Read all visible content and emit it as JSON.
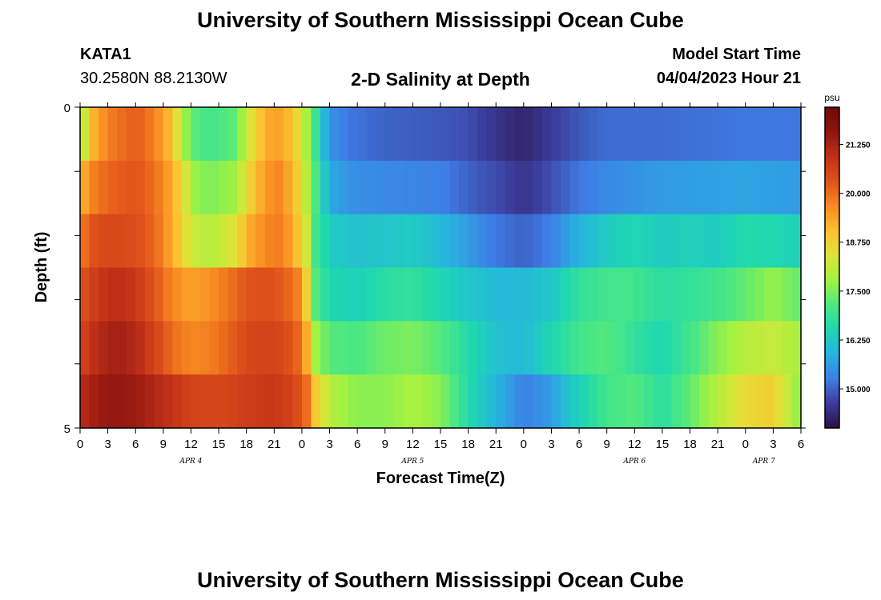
{
  "header": {
    "title": "University of Southern Mississippi Ocean Cube",
    "station_id": "KATA1",
    "station_coords": "30.2580N  88.2130W",
    "subtitle": "2-D Salinity at Depth",
    "model_start_label": "Model Start Time",
    "model_start_value": "04/04/2023 Hour 21"
  },
  "footer": {
    "title": "University of Southern Mississippi Ocean Cube"
  },
  "chart_data": {
    "type": "heatmap",
    "title": "2-D Salinity at Depth",
    "xlabel": "Forecast Time(Z)",
    "ylabel": "Depth (ft)",
    "ylim": [
      0,
      5
    ],
    "y_tick_labels": [
      "0",
      "5"
    ],
    "x_hours": [
      0,
      3,
      6,
      9,
      12,
      15,
      18,
      21,
      24,
      27,
      30,
      33,
      36,
      39,
      42,
      45,
      48,
      51,
      54,
      57,
      60,
      63,
      66,
      69,
      72,
      75,
      78
    ],
    "x_tick_labels": [
      "0",
      "3",
      "6",
      "9",
      "12",
      "15",
      "18",
      "21",
      "0",
      "3",
      "6",
      "9",
      "12",
      "15",
      "18",
      "21",
      "0",
      "3",
      "6",
      "9",
      "12",
      "15",
      "18",
      "21",
      "0",
      "3",
      "6"
    ],
    "day_labels": [
      {
        "label": "APR 4",
        "hour": 12
      },
      {
        "label": "APR 5",
        "hour": 36
      },
      {
        "label": "APR 6",
        "hour": 60
      },
      {
        "label": "APR 7",
        "hour": 74
      }
    ],
    "colorbar": {
      "unit": "psu",
      "range": [
        14.0,
        22.2
      ],
      "tick_labels": [
        "21.250",
        "20.000",
        "18.750",
        "17.500",
        "16.250",
        "15.000"
      ],
      "tick_values": [
        21.25,
        20.0,
        18.75,
        17.5,
        16.25,
        15.0
      ],
      "colors": [
        "#2a1245",
        "#3c3c9c",
        "#3e7ee6",
        "#26b4e0",
        "#1ed8b0",
        "#4ee880",
        "#a2f240",
        "#dee438",
        "#fdc030",
        "#f88a22",
        "#e0521a",
        "#c03018",
        "#8e1410",
        "#6e0a06"
      ]
    },
    "depth_rows": [
      {
        "depth_ft": 0,
        "keys": [
          [
            0,
            17.0
          ],
          [
            0.5,
            18.2
          ],
          [
            1.5,
            19.2
          ],
          [
            3,
            19.8
          ],
          [
            6,
            20.2
          ],
          [
            8,
            19.8
          ],
          [
            10,
            19.0
          ],
          [
            11,
            18.0
          ],
          [
            12,
            17.3
          ],
          [
            14,
            17.0
          ],
          [
            17,
            17.3
          ],
          [
            18,
            18.2
          ],
          [
            19.5,
            19.0
          ],
          [
            21,
            19.5
          ],
          [
            23,
            19.0
          ],
          [
            24,
            18.3
          ],
          [
            25,
            17.5
          ],
          [
            26,
            16.3
          ],
          [
            27,
            15.5
          ],
          [
            29,
            15.2
          ],
          [
            33,
            15.0
          ],
          [
            39,
            14.9
          ],
          [
            42,
            14.8
          ],
          [
            45,
            14.5
          ],
          [
            48,
            14.3
          ],
          [
            51,
            14.6
          ],
          [
            54,
            14.9
          ],
          [
            57,
            15.1
          ],
          [
            63,
            15.1
          ],
          [
            72,
            15.2
          ],
          [
            78,
            15.2
          ]
        ]
      },
      {
        "depth_ft": 1,
        "keys": [
          [
            0,
            19.0
          ],
          [
            1,
            19.7
          ],
          [
            3,
            20.1
          ],
          [
            6,
            20.3
          ],
          [
            8,
            20.0
          ],
          [
            10,
            19.3
          ],
          [
            11.5,
            18.3
          ],
          [
            12.5,
            17.7
          ],
          [
            14,
            17.5
          ],
          [
            17,
            17.8
          ],
          [
            18,
            18.6
          ],
          [
            20,
            19.5
          ],
          [
            21.5,
            19.7
          ],
          [
            23,
            19.2
          ],
          [
            24,
            18.5
          ],
          [
            25,
            17.6
          ],
          [
            26,
            16.6
          ],
          [
            27,
            15.8
          ],
          [
            29,
            15.5
          ],
          [
            33,
            15.4
          ],
          [
            39,
            15.3
          ],
          [
            43,
            14.9
          ],
          [
            46,
            14.7
          ],
          [
            48,
            14.5
          ],
          [
            51,
            14.8
          ],
          [
            54,
            15.2
          ],
          [
            57,
            15.4
          ],
          [
            63,
            15.6
          ],
          [
            72,
            15.7
          ],
          [
            78,
            15.6
          ]
        ]
      },
      {
        "depth_ft": 2,
        "keys": [
          [
            0,
            19.7
          ],
          [
            1,
            20.3
          ],
          [
            3,
            20.5
          ],
          [
            6,
            20.4
          ],
          [
            8,
            20.1
          ],
          [
            10,
            19.3
          ],
          [
            11.5,
            18.5
          ],
          [
            13,
            18.0
          ],
          [
            15,
            18.1
          ],
          [
            17,
            18.5
          ],
          [
            18,
            19.2
          ],
          [
            20,
            19.7
          ],
          [
            21.5,
            19.8
          ],
          [
            23,
            19.4
          ],
          [
            24.5,
            18.3
          ],
          [
            25.5,
            17.0
          ],
          [
            27,
            16.3
          ],
          [
            30,
            16.1
          ],
          [
            36,
            16.3
          ],
          [
            39,
            16.0
          ],
          [
            42,
            15.6
          ],
          [
            45,
            15.2
          ],
          [
            48,
            15.0
          ],
          [
            51,
            15.3
          ],
          [
            54,
            15.9
          ],
          [
            57,
            16.3
          ],
          [
            60,
            16.5
          ],
          [
            63,
            16.3
          ],
          [
            66,
            16.4
          ],
          [
            69,
            16.3
          ],
          [
            72,
            16.6
          ],
          [
            75,
            16.5
          ],
          [
            78,
            16.4
          ]
        ]
      },
      {
        "depth_ft": 3,
        "keys": [
          [
            0,
            20.3
          ],
          [
            2,
            20.8
          ],
          [
            4,
            21.0
          ],
          [
            6,
            20.8
          ],
          [
            8,
            20.3
          ],
          [
            10,
            19.7
          ],
          [
            12,
            19.4
          ],
          [
            14,
            19.6
          ],
          [
            16,
            19.9
          ],
          [
            18,
            20.3
          ],
          [
            20,
            20.4
          ],
          [
            22,
            20.2
          ],
          [
            23.5,
            19.8
          ],
          [
            24.5,
            18.8
          ],
          [
            25.5,
            17.2
          ],
          [
            27,
            16.5
          ],
          [
            30,
            16.4
          ],
          [
            33,
            16.7
          ],
          [
            36,
            16.8
          ],
          [
            39,
            16.5
          ],
          [
            42,
            16.2
          ],
          [
            45,
            16.0
          ],
          [
            48,
            16.0
          ],
          [
            51,
            16.2
          ],
          [
            54,
            16.8
          ],
          [
            57,
            17.0
          ],
          [
            60,
            17.0
          ],
          [
            63,
            16.7
          ],
          [
            66,
            16.8
          ],
          [
            69,
            17.0
          ],
          [
            72,
            17.3
          ],
          [
            75,
            17.7
          ],
          [
            78,
            17.3
          ]
        ]
      },
      {
        "depth_ft": 4,
        "keys": [
          [
            0,
            20.5
          ],
          [
            2,
            21.1
          ],
          [
            4,
            21.3
          ],
          [
            6,
            21.1
          ],
          [
            8,
            20.6
          ],
          [
            10,
            20.0
          ],
          [
            12,
            19.7
          ],
          [
            14,
            19.8
          ],
          [
            16,
            20.1
          ],
          [
            18,
            20.5
          ],
          [
            20,
            20.6
          ],
          [
            22,
            20.5
          ],
          [
            23.5,
            20.1
          ],
          [
            24.5,
            19.3
          ],
          [
            25.5,
            17.8
          ],
          [
            27,
            17.2
          ],
          [
            30,
            17.1
          ],
          [
            33,
            17.4
          ],
          [
            36,
            17.5
          ],
          [
            39,
            17.2
          ],
          [
            42,
            16.6
          ],
          [
            45,
            16.1
          ],
          [
            48,
            16.0
          ],
          [
            51,
            16.5
          ],
          [
            54,
            17.0
          ],
          [
            57,
            17.2
          ],
          [
            60,
            16.8
          ],
          [
            63,
            16.5
          ],
          [
            66,
            17.0
          ],
          [
            69,
            17.6
          ],
          [
            72,
            18.0
          ],
          [
            75,
            18.2
          ],
          [
            78,
            17.8
          ]
        ]
      },
      {
        "depth_ft": 5,
        "keys": [
          [
            0,
            21.0
          ],
          [
            2,
            21.4
          ],
          [
            4,
            21.5
          ],
          [
            6,
            21.4
          ],
          [
            9,
            21.0
          ],
          [
            12,
            20.6
          ],
          [
            15,
            20.5
          ],
          [
            18,
            20.7
          ],
          [
            21,
            20.8
          ],
          [
            23,
            20.6
          ],
          [
            24.5,
            20.0
          ],
          [
            25.5,
            18.9
          ],
          [
            27,
            18.0
          ],
          [
            30,
            17.6
          ],
          [
            33,
            17.6
          ],
          [
            36,
            17.9
          ],
          [
            39,
            17.6
          ],
          [
            42,
            16.6
          ],
          [
            45,
            15.9
          ],
          [
            48,
            15.3
          ],
          [
            51,
            15.6
          ],
          [
            53,
            16.2
          ],
          [
            57,
            17.0
          ],
          [
            60,
            17.2
          ],
          [
            63,
            16.7
          ],
          [
            66,
            17.3
          ],
          [
            69,
            18.0
          ],
          [
            72,
            18.6
          ],
          [
            75,
            18.8
          ],
          [
            77,
            18.0
          ],
          [
            78,
            17.5
          ]
        ]
      }
    ]
  }
}
